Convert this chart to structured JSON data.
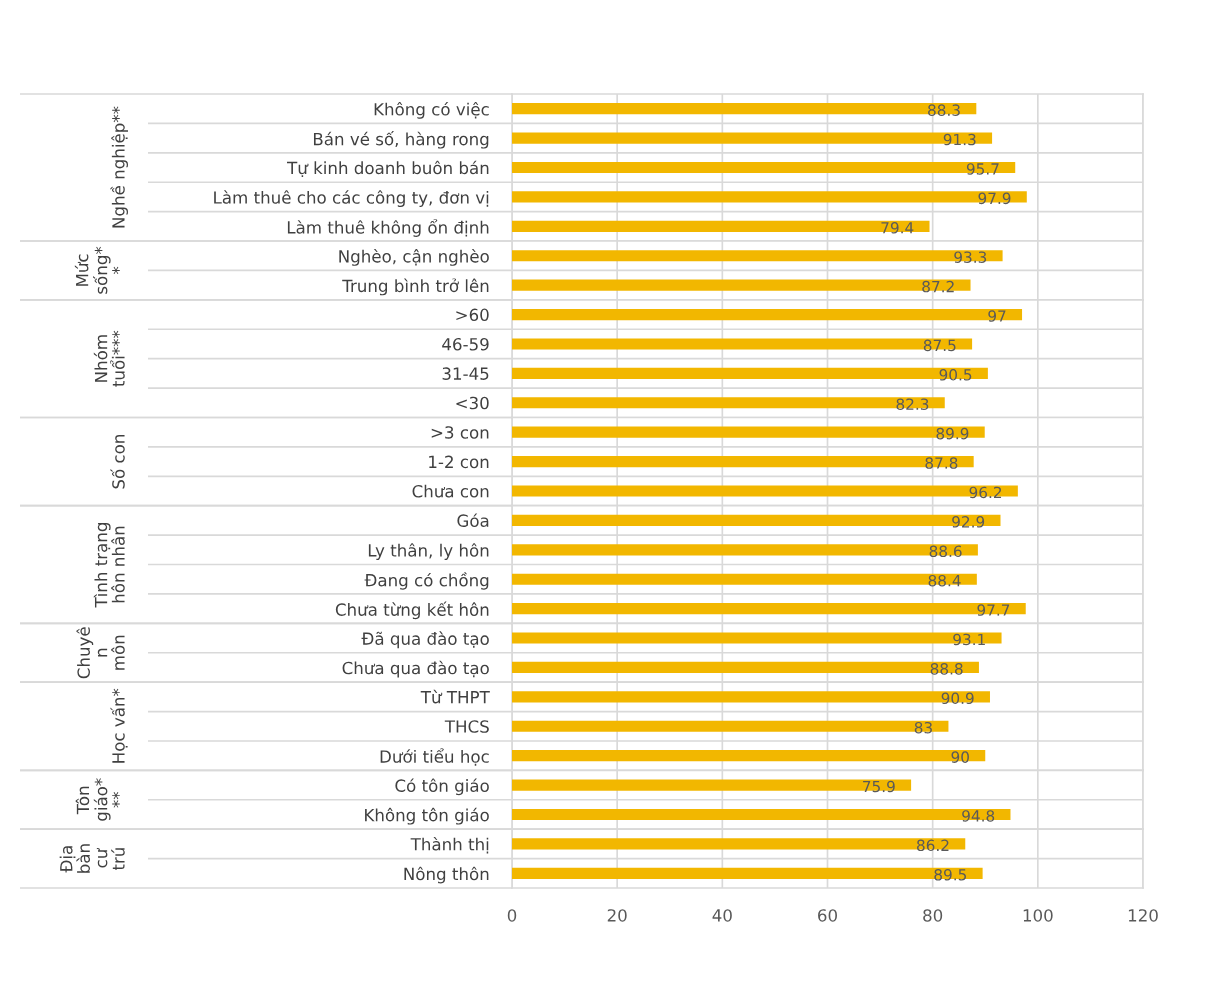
{
  "chart_data": [
    {
      "type": "bar",
      "orientation": "horizontal",
      "ylabel": "Nghề nghiệp**",
      "categories": [
        "Không có việc",
        "Bán vé số, hàng rong",
        "Tự kinh doanh buôn bán",
        "Làm thuê cho các công ty, đơn vị",
        "Làm thuê không ổn định"
      ],
      "values": [
        88.3,
        91.3,
        95.7,
        97.9,
        79.4
      ],
      "color": "#f2b700",
      "xlim": [
        0,
        120
      ],
      "xticks": [
        0,
        20,
        40,
        60,
        80,
        100,
        120
      ],
      "grid": true,
      "data_labels": true,
      "tick_labels": "y"
    },
    {
      "type": "bar",
      "orientation": "horizontal",
      "ylabel": "Mức\nsống*\n*",
      "categories": [
        "Nghèo, cận nghèo",
        "Trung bình trở lên"
      ],
      "values": [
        93.3,
        87.2
      ],
      "color": "#f2b700",
      "xlim": [
        0,
        120
      ],
      "xticks": [
        0,
        20,
        40,
        60,
        80,
        100,
        120
      ],
      "grid": true,
      "data_labels": true,
      "tick_labels": "y"
    },
    {
      "type": "bar",
      "orientation": "horizontal",
      "ylabel": "Nhóm\ntuổi***",
      "categories": [
        ">60",
        "46-59",
        "31-45",
        "<30"
      ],
      "values": [
        97,
        87.5,
        90.5,
        82.3
      ],
      "color": "#f2b700",
      "xlim": [
        0,
        120
      ],
      "xticks": [
        0,
        20,
        40,
        60,
        80,
        100,
        120
      ],
      "grid": true,
      "data_labels": true,
      "tick_labels": "y"
    },
    {
      "type": "bar",
      "orientation": "horizontal",
      "ylabel": "Số con",
      "categories": [
        ">3 con",
        "1-2 con",
        "Chưa con"
      ],
      "values": [
        89.9,
        87.8,
        96.2
      ],
      "color": "#f2b700",
      "xlim": [
        0,
        120
      ],
      "xticks": [
        0,
        20,
        40,
        60,
        80,
        100,
        120
      ],
      "grid": true,
      "data_labels": true,
      "tick_labels": "y"
    },
    {
      "type": "bar",
      "orientation": "horizontal",
      "ylabel": "Tình trạng\nhôn nhân",
      "categories": [
        "Góa",
        "Ly thân, ly hôn",
        "Đang có chồng",
        "Chưa từng kết hôn"
      ],
      "values": [
        92.9,
        88.6,
        88.4,
        97.7
      ],
      "color": "#f2b700",
      "xlim": [
        0,
        120
      ],
      "xticks": [
        0,
        20,
        40,
        60,
        80,
        100,
        120
      ],
      "grid": true,
      "data_labels": true,
      "tick_labels": "y"
    },
    {
      "type": "bar",
      "orientation": "horizontal",
      "ylabel": "Chuyê\nn\nmôn",
      "categories": [
        "Đã qua đào tạo",
        "Chưa qua đào tạo"
      ],
      "values": [
        93.1,
        88.8
      ],
      "color": "#f2b700",
      "xlim": [
        0,
        120
      ],
      "xticks": [
        0,
        20,
        40,
        60,
        80,
        100,
        120
      ],
      "grid": true,
      "data_labels": true,
      "tick_labels": "y"
    },
    {
      "type": "bar",
      "orientation": "horizontal",
      "ylabel": "Học vấn*",
      "categories": [
        "Từ THPT",
        "THCS",
        "Dưới tiểu học"
      ],
      "values": [
        90.9,
        83,
        90
      ],
      "color": "#f2b700",
      "xlim": [
        0,
        120
      ],
      "xticks": [
        0,
        20,
        40,
        60,
        80,
        100,
        120
      ],
      "grid": true,
      "data_labels": true,
      "tick_labels": "y"
    },
    {
      "type": "bar",
      "orientation": "horizontal",
      "ylabel": "Tôn\ngiáo*\n**",
      "categories": [
        "Có tôn giáo",
        "Không tôn giáo"
      ],
      "values": [
        75.9,
        94.8
      ],
      "color": "#f2b700",
      "xlim": [
        0,
        120
      ],
      "xticks": [
        0,
        20,
        40,
        60,
        80,
        100,
        120
      ],
      "grid": true,
      "data_labels": true,
      "tick_labels": "y"
    },
    {
      "type": "bar",
      "orientation": "horizontal",
      "ylabel": "Địa\nbàn\ncư\ntrú",
      "categories": [
        "Thành thị",
        "Nông thôn"
      ],
      "values": [
        86.2,
        89.5
      ],
      "color": "#f2b700",
      "xlim": [
        0,
        120
      ],
      "xticks": [
        0,
        20,
        40,
        60,
        80,
        100,
        120
      ],
      "grid": true,
      "data_labels": true
    }
  ]
}
